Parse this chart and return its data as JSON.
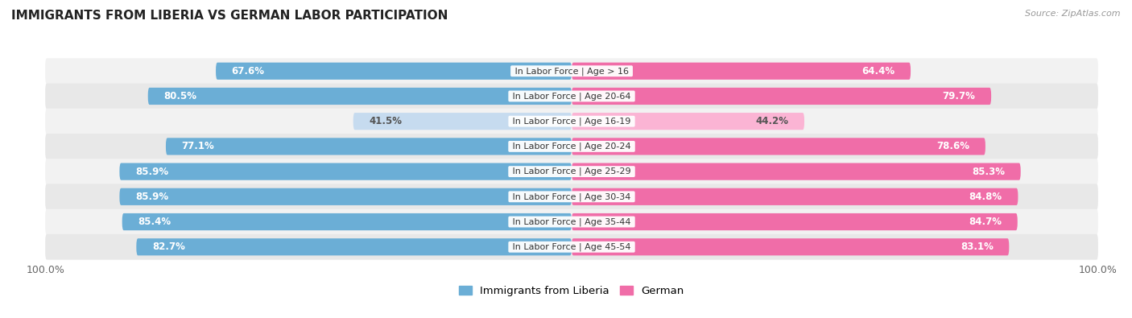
{
  "title": "IMMIGRANTS FROM LIBERIA VS GERMAN LABOR PARTICIPATION",
  "source": "Source: ZipAtlas.com",
  "categories": [
    "In Labor Force | Age > 16",
    "In Labor Force | Age 20-64",
    "In Labor Force | Age 16-19",
    "In Labor Force | Age 20-24",
    "In Labor Force | Age 25-29",
    "In Labor Force | Age 30-34",
    "In Labor Force | Age 35-44",
    "In Labor Force | Age 45-54"
  ],
  "liberia_values": [
    67.6,
    80.5,
    41.5,
    77.1,
    85.9,
    85.9,
    85.4,
    82.7
  ],
  "german_values": [
    64.4,
    79.7,
    44.2,
    78.6,
    85.3,
    84.8,
    84.7,
    83.1
  ],
  "liberia_color": "#6baed6",
  "liberia_light_color": "#c6dbef",
  "german_color": "#f06da8",
  "german_light_color": "#fbb4d4",
  "row_colors": [
    "#f2f2f2",
    "#e8e8e8"
  ],
  "label_color_white": "#ffffff",
  "label_color_dark": "#555555",
  "max_value": 100.0,
  "legend_liberia": "Immigrants from Liberia",
  "legend_german": "German",
  "title_fontsize": 11,
  "source_fontsize": 8,
  "bar_label_fontsize": 8.5,
  "cat_label_fontsize": 8,
  "tick_fontsize": 9
}
